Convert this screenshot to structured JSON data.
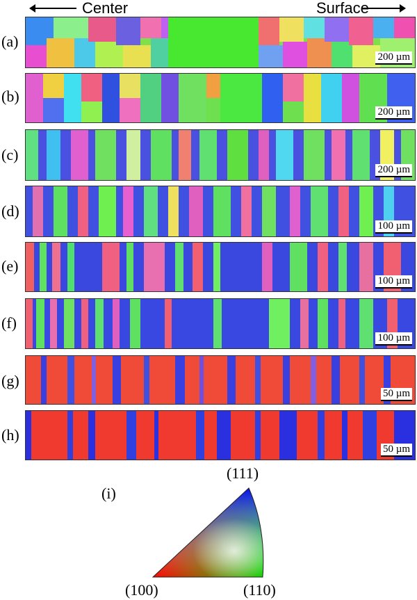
{
  "header": {
    "left_label": "Center",
    "right_label": "Surface"
  },
  "panels": [
    {
      "label": "(a)",
      "scale": "200 µm"
    },
    {
      "label": "(b)",
      "scale": "200 µm"
    },
    {
      "label": "(c)",
      "scale": "200 µm"
    },
    {
      "label": "(d)",
      "scale": "100 µm"
    },
    {
      "label": "(e)",
      "scale": "100 µm"
    },
    {
      "label": "(f)",
      "scale": "100 µm"
    },
    {
      "label": "(g)",
      "scale": "50 µm"
    },
    {
      "label": "(h)",
      "scale": "50 µm"
    }
  ],
  "ipf": {
    "label": "(i)",
    "corner_top": "(111)",
    "corner_left": "(100)",
    "corner_right": "(110)"
  }
}
